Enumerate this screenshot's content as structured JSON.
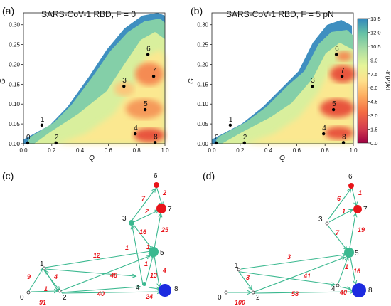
{
  "colors": {
    "edge": "#3ab88f",
    "red_node": "#e8141a",
    "blue_node": "#1d2be0",
    "teal_node": "#3ab88f"
  },
  "panels": {
    "a": {
      "letter": "(a)",
      "title": "SARS-CoV-1 RBD, F = 0"
    },
    "b": {
      "letter": "(b)",
      "title": "SARS-CoV-1 RBD, F = 5 pN"
    },
    "c": {
      "letter": "(c)"
    },
    "d": {
      "letter": "(d)"
    }
  },
  "chart_data": [
    {
      "type": "heatmap",
      "panel": "a",
      "title": "SARS-CoV-1 RBD, F = 0",
      "xlabel": "Q",
      "ylabel": "G",
      "xlim": [
        0,
        1
      ],
      "ylim": [
        0,
        0.33
      ],
      "xticks": [
        "0.0",
        "0.2",
        "0.4",
        "0.6",
        "0.8",
        "1.0"
      ],
      "yticks": [
        "0.00",
        "0.05",
        "0.10",
        "0.15",
        "0.20",
        "0.25",
        "0.30"
      ],
      "states": [
        {
          "label": "0",
          "Q": 0.03,
          "G": 0.002
        },
        {
          "label": "1",
          "Q": 0.13,
          "G": 0.047
        },
        {
          "label": "2",
          "Q": 0.23,
          "G": 0.002
        },
        {
          "label": "3",
          "Q": 0.71,
          "G": 0.145
        },
        {
          "label": "4",
          "Q": 0.79,
          "G": 0.025
        },
        {
          "label": "5",
          "Q": 0.86,
          "G": 0.086
        },
        {
          "label": "6",
          "Q": 0.88,
          "G": 0.225
        },
        {
          "label": "7",
          "Q": 0.92,
          "G": 0.17
        },
        {
          "label": "8",
          "Q": 0.93,
          "G": 0.003
        }
      ]
    },
    {
      "type": "heatmap",
      "panel": "b",
      "title": "SARS-CoV-1 RBD, F = 5 pN",
      "xlabel": "Q",
      "ylabel": "G",
      "xlim": [
        0,
        1
      ],
      "ylim": [
        0,
        0.33
      ],
      "xticks": [
        "0.0",
        "0.2",
        "0.4",
        "0.6",
        "0.8",
        "1.0"
      ],
      "yticks": [
        "0.00",
        "0.05",
        "0.10",
        "0.15",
        "0.20",
        "0.25",
        "0.30"
      ],
      "colorbar": {
        "label": "-ln(P)/kT",
        "ticks": [
          "0.0",
          "1.5",
          "3.0",
          "4.5",
          "6.0",
          "7.5",
          "9.0",
          "10.5",
          "12.0",
          "13.5"
        ],
        "range": [
          0,
          13.5
        ]
      },
      "states": [
        {
          "label": "0",
          "Q": 0.03,
          "G": 0.002
        },
        {
          "label": "1",
          "Q": 0.13,
          "G": 0.047
        },
        {
          "label": "2",
          "Q": 0.23,
          "G": 0.002
        },
        {
          "label": "3",
          "Q": 0.71,
          "G": 0.145
        },
        {
          "label": "4",
          "Q": 0.79,
          "G": 0.025
        },
        {
          "label": "5",
          "Q": 0.86,
          "G": 0.086
        },
        {
          "label": "6",
          "Q": 0.88,
          "G": 0.225
        },
        {
          "label": "7",
          "Q": 0.92,
          "G": 0.17
        },
        {
          "label": "8",
          "Q": 0.93,
          "G": 0.003
        }
      ]
    }
  ],
  "networks": {
    "c": {
      "nodes": [
        {
          "id": "0",
          "label": "0",
          "color": "white"
        },
        {
          "id": "1",
          "label": "1",
          "color": "white"
        },
        {
          "id": "2",
          "label": "2",
          "color": "white"
        },
        {
          "id": "3",
          "label": "3",
          "color": "teal"
        },
        {
          "id": "4",
          "label": "4",
          "color": "teal"
        },
        {
          "id": "5",
          "label": "5",
          "color": "teal"
        },
        {
          "id": "6",
          "label": "6",
          "color": "red"
        },
        {
          "id": "7",
          "label": "7",
          "color": "red"
        },
        {
          "id": "8",
          "label": "8",
          "color": "blue"
        }
      ],
      "edge_labels": [
        "9",
        "1",
        "4",
        "91",
        "12",
        "48",
        "40",
        "1",
        "16",
        "25",
        "2",
        "7",
        "2",
        "1",
        "1",
        "13",
        "4",
        "24"
      ]
    },
    "d": {
      "nodes": [
        {
          "id": "0",
          "label": "0",
          "color": "white"
        },
        {
          "id": "1",
          "label": "1",
          "color": "white"
        },
        {
          "id": "2",
          "label": "2",
          "color": "white"
        },
        {
          "id": "3",
          "label": "3",
          "color": "white"
        },
        {
          "id": "4",
          "label": "4",
          "color": "white"
        },
        {
          "id": "5",
          "label": "5",
          "color": "teal"
        },
        {
          "id": "6",
          "label": "6",
          "color": "red"
        },
        {
          "id": "7",
          "label": "7",
          "color": "red"
        },
        {
          "id": "8",
          "label": "8",
          "color": "blue"
        }
      ],
      "edge_labels": [
        "3",
        "3",
        "100",
        "41",
        "58",
        "7",
        "19",
        "6",
        "1",
        "1",
        "1",
        "16",
        "40"
      ]
    }
  }
}
